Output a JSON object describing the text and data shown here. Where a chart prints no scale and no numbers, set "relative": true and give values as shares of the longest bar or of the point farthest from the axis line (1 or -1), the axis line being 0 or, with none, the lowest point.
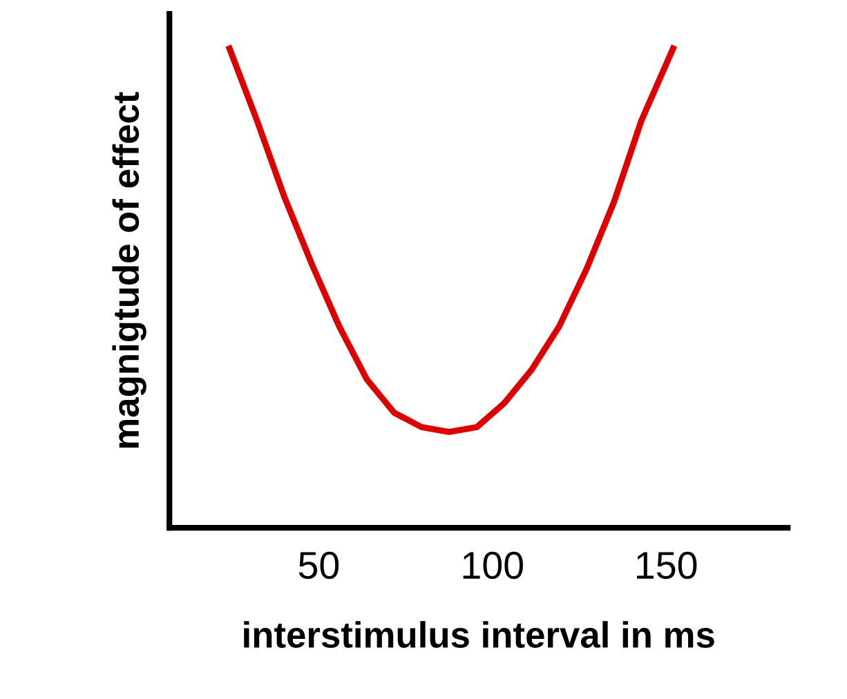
{
  "chart_data": {
    "type": "line",
    "relative": true,
    "xlabel": "interstimulus interval in ms",
    "ylabel": "magnigtude of effect",
    "xlim": [
      7,
      185
    ],
    "xticks": [
      50,
      100,
      150
    ],
    "tick_labels": "x",
    "grid": false,
    "legend": false,
    "marker": "none",
    "line_style": "solid",
    "series": [
      {
        "color": "#dd0000",
        "x": [
          24.3,
          32.2,
          40.1,
          48,
          55.9,
          63.8,
          71.7,
          79.6,
          87.5,
          95.5,
          103.4,
          111.3,
          119.2,
          127.1,
          135,
          142.9,
          152
        ],
        "values": [
          1,
          0.85,
          0.69,
          0.55,
          0.42,
          0.31,
          0.24,
          0.21,
          0.2,
          0.21,
          0.26,
          0.33,
          0.42,
          0.54,
          0.68,
          0.85,
          1
        ]
      }
    ]
  }
}
